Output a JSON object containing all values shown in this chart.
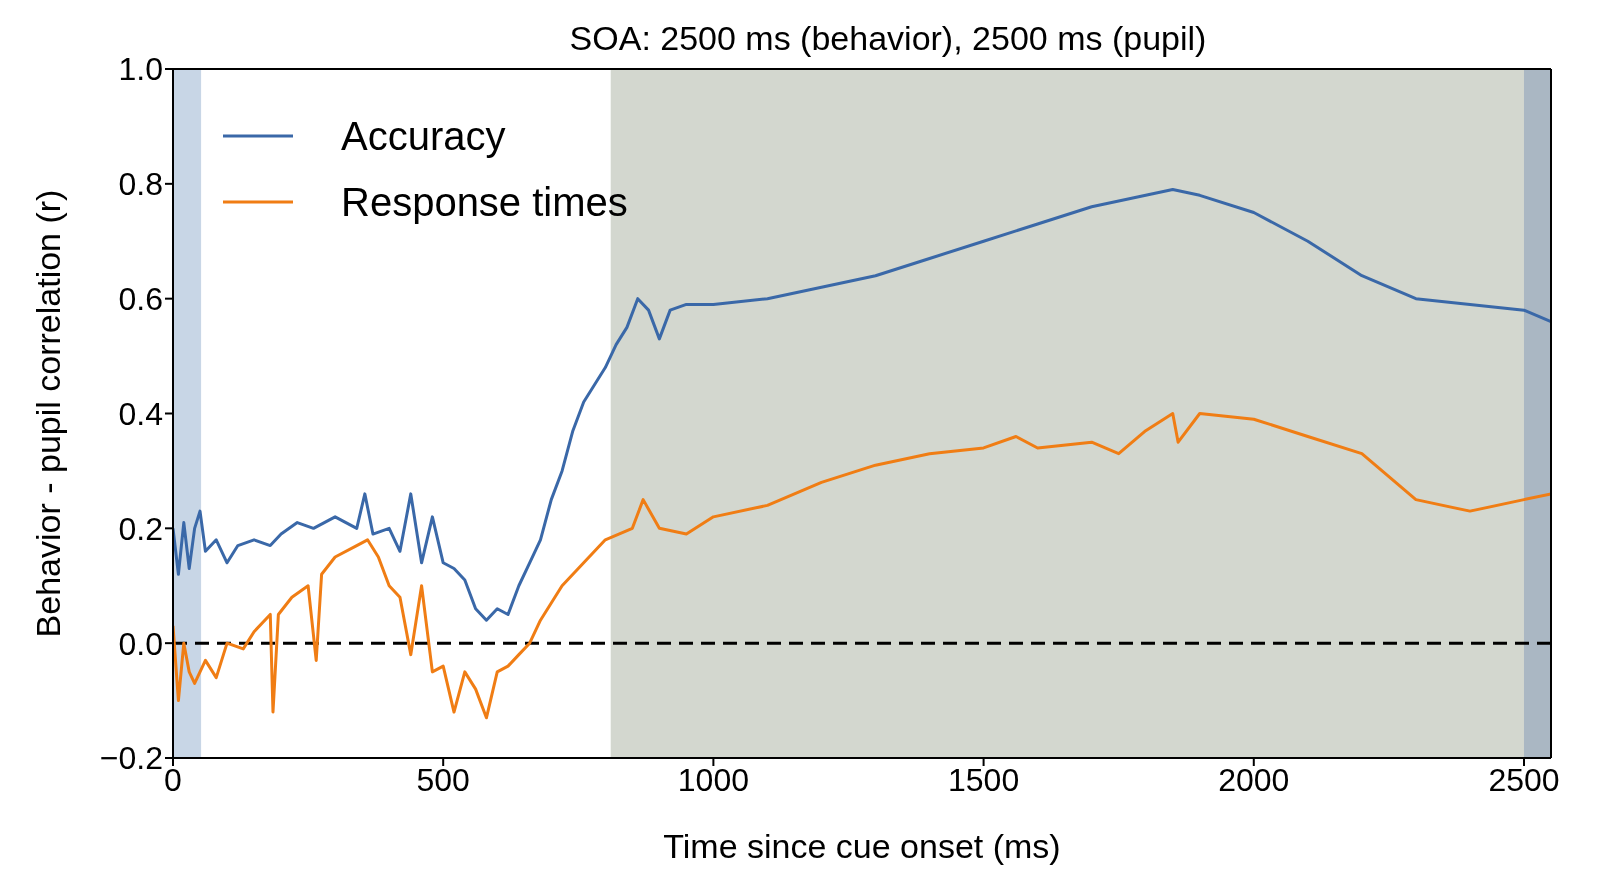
{
  "chart_data": {
    "type": "line",
    "title": "SOA: 2500 ms (behavior), 2500 ms (pupil)",
    "xlabel": "Time since cue onset (ms)",
    "ylabel": "Behavior - pupil correlation (r)",
    "xlim": [
      0,
      2550
    ],
    "xticks": [
      0,
      500,
      1000,
      1500,
      2000,
      2500
    ],
    "ylim": [
      -0.2,
      1.0
    ],
    "yticks": [
      {
        "value": -0.2,
        "label": "−0.2"
      },
      {
        "value": 0,
        "label": "0.0"
      },
      {
        "value": 0.2,
        "label": "0.2"
      },
      {
        "value": 0.4,
        "label": "0.4"
      },
      {
        "value": 0.6,
        "label": "0.6"
      },
      {
        "value": 0.8,
        "label": "0.8"
      },
      {
        "value": 1.0,
        "label": "1.0"
      }
    ],
    "legend": "top left",
    "marker": "none",
    "line_style": "solid",
    "bands": [
      {
        "axis": "x",
        "from": 0,
        "to": 52,
        "color": "#c8d6e6"
      },
      {
        "axis": "x",
        "from": 810,
        "to": 2550,
        "color": "#d3d7cf"
      },
      {
        "axis": "x",
        "from": 2500,
        "to": 2550,
        "color": "#aab7c3"
      }
    ],
    "ref_lines": [
      {
        "axis": "y",
        "value": 0,
        "color": "#000000",
        "line_style": "dashed"
      }
    ],
    "series": [
      {
        "name": "Accuracy",
        "color": "#3a68a8",
        "x": [
          0,
          10,
          20,
          30,
          40,
          50,
          60,
          80,
          100,
          120,
          150,
          180,
          200,
          230,
          260,
          300,
          340,
          355,
          370,
          400,
          420,
          440,
          460,
          480,
          500,
          520,
          540,
          560,
          580,
          600,
          620,
          640,
          660,
          680,
          700,
          720,
          740,
          760,
          780,
          800,
          820,
          840,
          860,
          880,
          900,
          920,
          950,
          1000,
          1100,
          1200,
          1300,
          1400,
          1500,
          1600,
          1700,
          1800,
          1850,
          1900,
          2000,
          2100,
          2200,
          2300,
          2400,
          2500,
          2550
        ],
        "values": [
          0.2,
          0.12,
          0.21,
          0.13,
          0.2,
          0.23,
          0.16,
          0.18,
          0.14,
          0.17,
          0.18,
          0.17,
          0.19,
          0.21,
          0.2,
          0.22,
          0.2,
          0.26,
          0.19,
          0.2,
          0.16,
          0.26,
          0.14,
          0.22,
          0.14,
          0.13,
          0.11,
          0.06,
          0.04,
          0.06,
          0.05,
          0.1,
          0.14,
          0.18,
          0.25,
          0.3,
          0.37,
          0.42,
          0.45,
          0.48,
          0.52,
          0.55,
          0.6,
          0.58,
          0.53,
          0.58,
          0.59,
          0.59,
          0.6,
          0.62,
          0.64,
          0.67,
          0.7,
          0.73,
          0.76,
          0.78,
          0.79,
          0.78,
          0.75,
          0.7,
          0.64,
          0.6,
          0.59,
          0.58,
          0.56
        ]
      },
      {
        "name": "Response times",
        "color": "#f07d14",
        "x": [
          0,
          10,
          20,
          30,
          40,
          60,
          80,
          100,
          130,
          150,
          180,
          185,
          195,
          220,
          250,
          265,
          275,
          300,
          340,
          360,
          380,
          400,
          420,
          440,
          460,
          480,
          500,
          520,
          540,
          560,
          580,
          600,
          620,
          640,
          660,
          680,
          700,
          720,
          760,
          800,
          850,
          870,
          900,
          950,
          1000,
          1100,
          1200,
          1300,
          1400,
          1500,
          1560,
          1600,
          1700,
          1750,
          1800,
          1850,
          1860,
          1900,
          2000,
          2100,
          2200,
          2300,
          2400,
          2500,
          2550
        ],
        "values": [
          0.03,
          -0.1,
          0.0,
          -0.05,
          -0.07,
          -0.03,
          -0.06,
          0.0,
          -0.01,
          0.02,
          0.05,
          -0.12,
          0.05,
          0.08,
          0.1,
          -0.03,
          0.12,
          0.15,
          0.17,
          0.18,
          0.15,
          0.1,
          0.08,
          -0.02,
          0.1,
          -0.05,
          -0.04,
          -0.12,
          -0.05,
          -0.08,
          -0.13,
          -0.05,
          -0.04,
          -0.02,
          0.0,
          0.04,
          0.07,
          0.1,
          0.14,
          0.18,
          0.2,
          0.25,
          0.2,
          0.19,
          0.22,
          0.24,
          0.28,
          0.31,
          0.33,
          0.34,
          0.36,
          0.34,
          0.35,
          0.33,
          0.37,
          0.4,
          0.35,
          0.4,
          0.39,
          0.36,
          0.33,
          0.25,
          0.23,
          0.25,
          0.26
        ]
      }
    ]
  }
}
